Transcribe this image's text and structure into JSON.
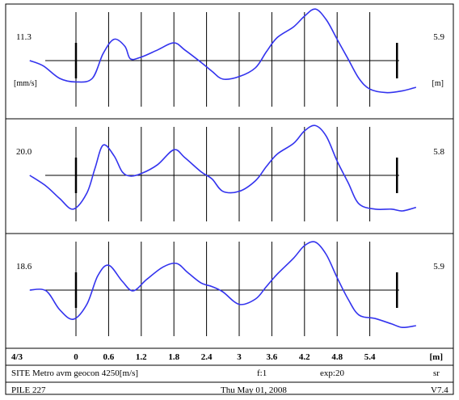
{
  "chart_data": {
    "type": "line",
    "line_color": "#3333ee",
    "x_ticks": [
      "0",
      "0.6",
      "1.2",
      "1.8",
      "2.4",
      "3",
      "3.6",
      "4.2",
      "4.8",
      "5.4"
    ],
    "x_unit": "[m]",
    "x_range": [
      -0.85,
      6.3
    ],
    "panels": [
      {
        "left_value": "11.3",
        "left_unit": "[mm/s]",
        "right_value": "5.9",
        "right_unit": "[m]",
        "markers": [
          0,
          5.9
        ],
        "points": [
          [
            -0.85,
            0.0
          ],
          [
            -0.6,
            -0.15
          ],
          [
            -0.3,
            -0.5
          ],
          [
            0,
            -0.6
          ],
          [
            0.3,
            -0.5
          ],
          [
            0.5,
            0.2
          ],
          [
            0.7,
            0.6
          ],
          [
            0.9,
            0.4
          ],
          [
            1.0,
            0.05
          ],
          [
            1.2,
            0.1
          ],
          [
            1.5,
            0.3
          ],
          [
            1.8,
            0.5
          ],
          [
            2.0,
            0.3
          ],
          [
            2.3,
            -0.05
          ],
          [
            2.5,
            -0.3
          ],
          [
            2.7,
            -0.52
          ],
          [
            3.0,
            -0.45
          ],
          [
            3.3,
            -0.2
          ],
          [
            3.5,
            0.25
          ],
          [
            3.7,
            0.65
          ],
          [
            4.0,
            0.95
          ],
          [
            4.2,
            1.25
          ],
          [
            4.4,
            1.45
          ],
          [
            4.6,
            1.15
          ],
          [
            4.8,
            0.6
          ],
          [
            5.0,
            0.05
          ],
          [
            5.2,
            -0.5
          ],
          [
            5.4,
            -0.8
          ],
          [
            5.7,
            -0.9
          ],
          [
            6.0,
            -0.85
          ],
          [
            6.25,
            -0.75
          ]
        ]
      },
      {
        "left_value": "20.0",
        "left_unit": "",
        "right_value": "5.8",
        "right_unit": "",
        "markers": [
          0,
          5.9
        ],
        "points": [
          [
            -0.85,
            0.0
          ],
          [
            -0.55,
            -0.3
          ],
          [
            -0.3,
            -0.65
          ],
          [
            -0.05,
            -0.95
          ],
          [
            0.2,
            -0.5
          ],
          [
            0.35,
            0.2
          ],
          [
            0.5,
            0.85
          ],
          [
            0.7,
            0.55
          ],
          [
            0.85,
            0.1
          ],
          [
            1.0,
            -0.02
          ],
          [
            1.2,
            0.05
          ],
          [
            1.5,
            0.3
          ],
          [
            1.8,
            0.72
          ],
          [
            2.0,
            0.5
          ],
          [
            2.3,
            0.1
          ],
          [
            2.5,
            -0.1
          ],
          [
            2.7,
            -0.45
          ],
          [
            3.0,
            -0.45
          ],
          [
            3.3,
            -0.15
          ],
          [
            3.5,
            0.25
          ],
          [
            3.7,
            0.6
          ],
          [
            4.0,
            0.9
          ],
          [
            4.2,
            1.25
          ],
          [
            4.4,
            1.4
          ],
          [
            4.6,
            1.1
          ],
          [
            4.8,
            0.4
          ],
          [
            5.0,
            -0.2
          ],
          [
            5.2,
            -0.8
          ],
          [
            5.5,
            -0.95
          ],
          [
            5.8,
            -0.95
          ],
          [
            6.0,
            -1.0
          ],
          [
            6.25,
            -0.9
          ]
        ]
      },
      {
        "left_value": "18.6",
        "left_unit": "",
        "right_value": "5.9",
        "right_unit": "",
        "markers": [
          0,
          5.9
        ],
        "points": [
          [
            -0.85,
            0.0
          ],
          [
            -0.55,
            -0.02
          ],
          [
            -0.3,
            -0.55
          ],
          [
            -0.05,
            -0.82
          ],
          [
            0.2,
            -0.4
          ],
          [
            0.4,
            0.4
          ],
          [
            0.6,
            0.7
          ],
          [
            0.85,
            0.25
          ],
          [
            1.05,
            -0.02
          ],
          [
            1.3,
            0.3
          ],
          [
            1.6,
            0.65
          ],
          [
            1.85,
            0.75
          ],
          [
            2.05,
            0.5
          ],
          [
            2.3,
            0.2
          ],
          [
            2.5,
            0.1
          ],
          [
            2.7,
            -0.05
          ],
          [
            3.0,
            -0.4
          ],
          [
            3.3,
            -0.25
          ],
          [
            3.5,
            0.1
          ],
          [
            3.7,
            0.45
          ],
          [
            4.0,
            0.9
          ],
          [
            4.2,
            1.25
          ],
          [
            4.4,
            1.35
          ],
          [
            4.6,
            1.0
          ],
          [
            4.8,
            0.35
          ],
          [
            5.0,
            -0.25
          ],
          [
            5.2,
            -0.7
          ],
          [
            5.5,
            -0.8
          ],
          [
            5.8,
            -0.95
          ],
          [
            6.0,
            -1.05
          ],
          [
            6.25,
            -1.0
          ]
        ]
      }
    ]
  },
  "footer": {
    "scale_label": "4/3",
    "site": "SITE Metro avm geocon 4250[m/s]",
    "factor": "f:1",
    "exp": "exp:20",
    "mode": "sr",
    "pile": "PILE 227",
    "date": "Thu May 01, 2008",
    "version": "V7.4"
  }
}
